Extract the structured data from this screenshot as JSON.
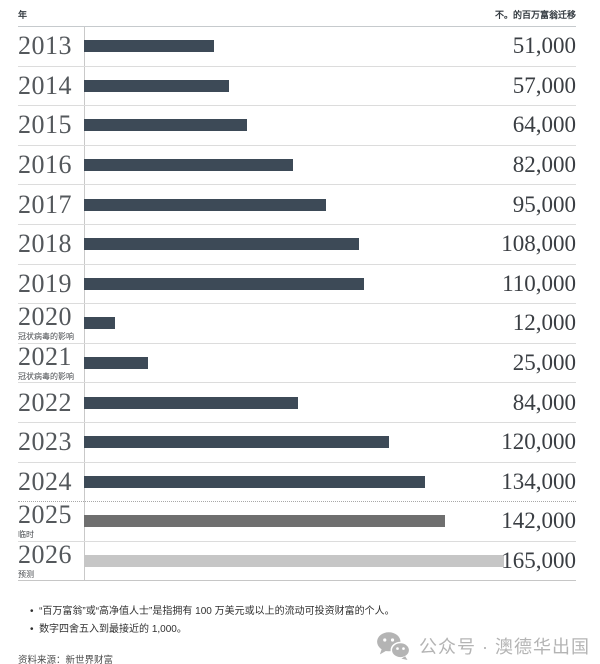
{
  "header": {
    "left_label": "年",
    "right_label": "不。的百万富翁迁移"
  },
  "chart_data": {
    "type": "bar",
    "orientation": "horizontal",
    "title": "",
    "xlabel_left": "年",
    "xlabel_right": "不。的百万富翁迁移",
    "xlim": [
      0,
      165000
    ],
    "grid": "row-separators",
    "max_value": 165000,
    "categories": [
      "2013",
      "2014",
      "2015",
      "2016",
      "2017",
      "2018",
      "2019",
      "2020",
      "2021",
      "2022",
      "2023",
      "2024",
      "2025",
      "2026"
    ],
    "values": [
      51000,
      57000,
      64000,
      82000,
      95000,
      108000,
      110000,
      12000,
      25000,
      84000,
      120000,
      134000,
      142000,
      165000
    ],
    "rows": [
      {
        "year": "2013",
        "note": "",
        "value": 51000,
        "label": "51,000",
        "style": "dark"
      },
      {
        "year": "2014",
        "note": "",
        "value": 57000,
        "label": "57,000",
        "style": "dark"
      },
      {
        "year": "2015",
        "note": "",
        "value": 64000,
        "label": "64,000",
        "style": "dark"
      },
      {
        "year": "2016",
        "note": "",
        "value": 82000,
        "label": "82,000",
        "style": "dark"
      },
      {
        "year": "2017",
        "note": "",
        "value": 95000,
        "label": "95,000",
        "style": "dark"
      },
      {
        "year": "2018",
        "note": "",
        "value": 108000,
        "label": "108,000",
        "style": "dark"
      },
      {
        "year": "2019",
        "note": "",
        "value": 110000,
        "label": "110,000",
        "style": "dark"
      },
      {
        "year": "2020",
        "note": "冠状病毒的影响",
        "value": 12000,
        "label": "12,000",
        "style": "dark"
      },
      {
        "year": "2021",
        "note": "冠状病毒的影响",
        "value": 25000,
        "label": "25,000",
        "style": "dark"
      },
      {
        "year": "2022",
        "note": "",
        "value": 84000,
        "label": "84,000",
        "style": "dark"
      },
      {
        "year": "2023",
        "note": "",
        "value": 120000,
        "label": "120,000",
        "style": "dark"
      },
      {
        "year": "2024",
        "note": "",
        "value": 134000,
        "label": "134,000",
        "style": "dark",
        "separator_after": "dotted"
      },
      {
        "year": "2025",
        "note": "临时",
        "value": 142000,
        "label": "142,000",
        "style": "provisional"
      },
      {
        "year": "2026",
        "note": "预测",
        "value": 165000,
        "label": "165,000",
        "style": "forecast"
      }
    ]
  },
  "colors": {
    "bar_dark": "#3d4a57",
    "bar_provisional": "#6f6f6f",
    "bar_forecast": "#c6c6c6",
    "separator": "#dcdcdc",
    "axis_line": "#c9c9c9"
  },
  "footnotes": [
    "“百万富翁”或“高净值人士”是指拥有 100 万美元或以上的流动可投资财富的个人。",
    "数字四舍五入到最接近的 1,000。"
  ],
  "source": "资料来源：新世界财富",
  "badge": {
    "icon": "wechat-icon",
    "text": "公众号 · 澳德华出国"
  }
}
